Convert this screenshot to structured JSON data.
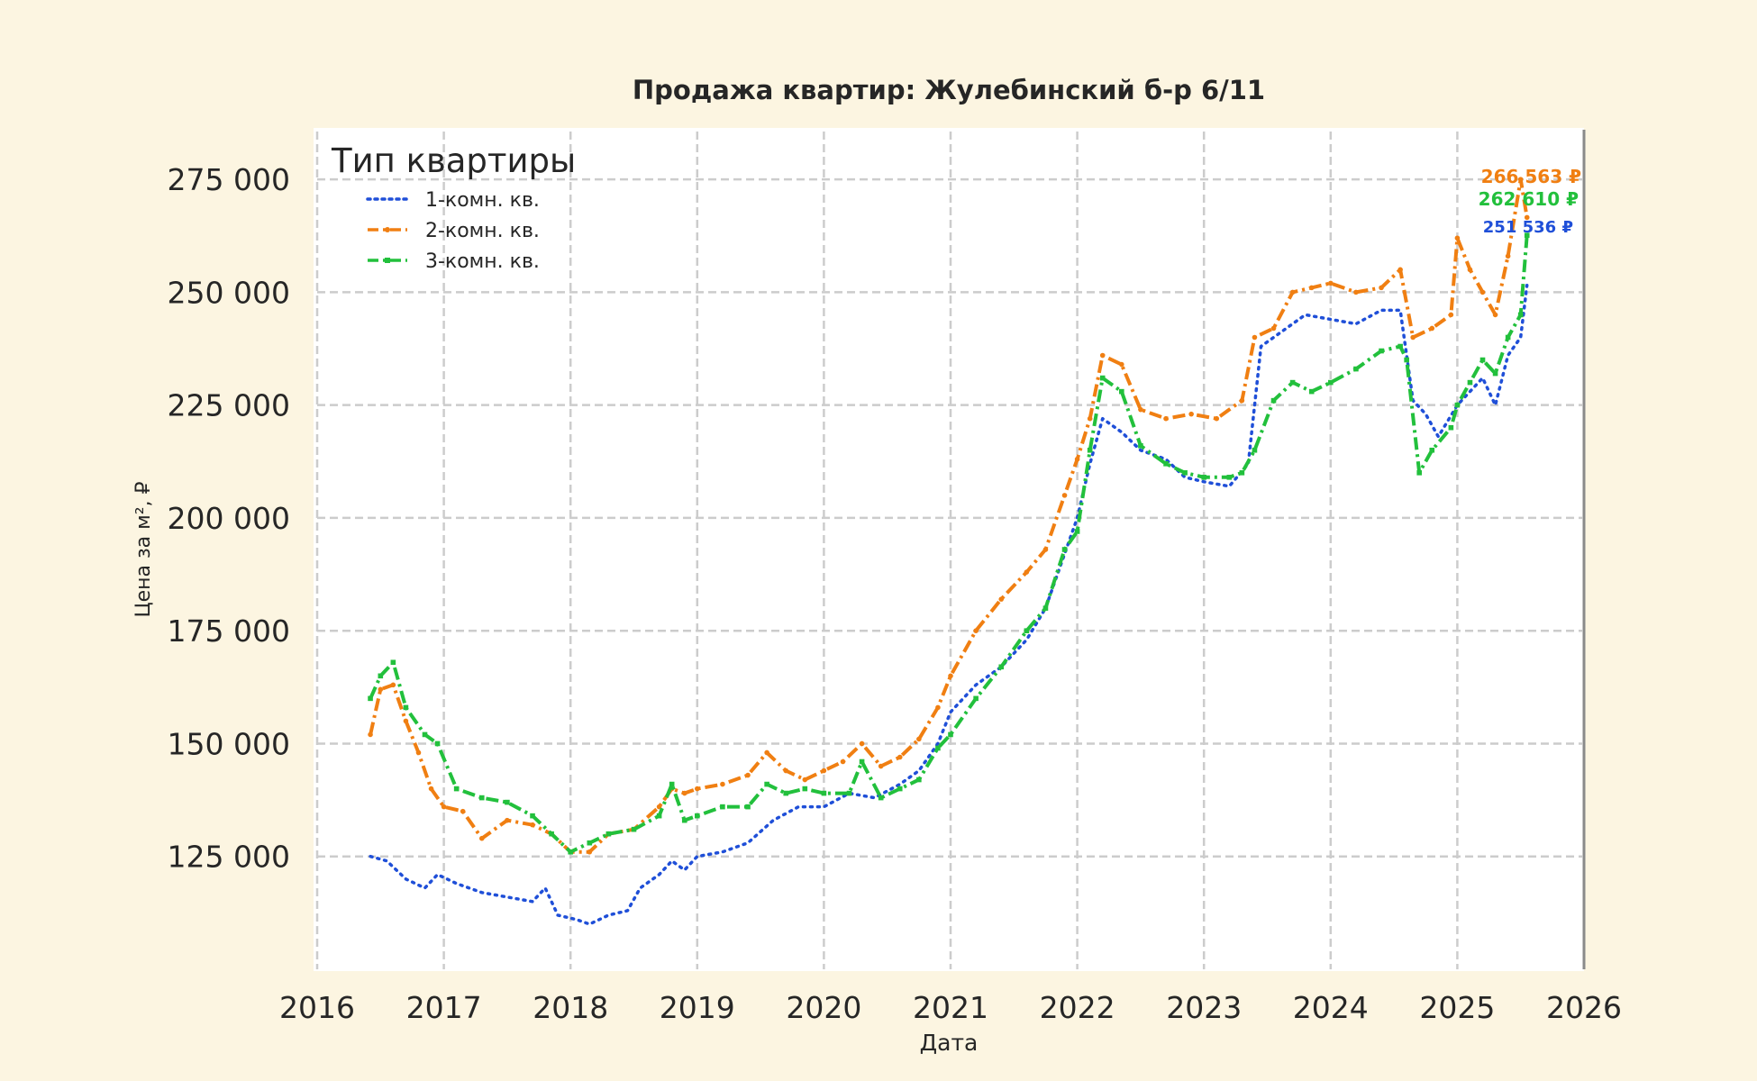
{
  "chart_data": {
    "type": "line",
    "title": "Продажа квартир: Жулебинский б-р 6/11",
    "xlabel": "Дата",
    "ylabel": "Цена за м², ₽",
    "xlim": [
      2016.0,
      2026.0
    ],
    "ylim": [
      100000,
      286000
    ],
    "x_ticks": [
      "2016",
      "2017",
      "2018",
      "2019",
      "2020",
      "2021",
      "2022",
      "2023",
      "2024",
      "2025",
      "2026"
    ],
    "y_ticks": [
      {
        "value": 125000,
        "label": "125 000"
      },
      {
        "value": 150000,
        "label": "150 000"
      },
      {
        "value": 175000,
        "label": "175 000"
      },
      {
        "value": 200000,
        "label": "200 000"
      },
      {
        "value": 225000,
        "label": "225 000"
      },
      {
        "value": 250000,
        "label": "250 000"
      },
      {
        "value": 275000,
        "label": "275 000"
      }
    ],
    "grid": true,
    "legend": {
      "title": "Тип квартиры",
      "placement": "top-left"
    },
    "series": [
      {
        "name": "1-комн. кв.",
        "color": "#1f4fd8",
        "style": "dotted",
        "end_label": "251 536 ₽",
        "x": [
          2016.42,
          2016.55,
          2016.7,
          2016.85,
          2016.95,
          2017.1,
          2017.3,
          2017.5,
          2017.7,
          2017.8,
          2017.9,
          2018.05,
          2018.15,
          2018.3,
          2018.45,
          2018.55,
          2018.7,
          2018.8,
          2018.9,
          2019.0,
          2019.2,
          2019.4,
          2019.6,
          2019.8,
          2020.0,
          2020.2,
          2020.4,
          2020.6,
          2020.75,
          2020.9,
          2021.0,
          2021.2,
          2021.4,
          2021.6,
          2021.75,
          2021.9,
          2022.0,
          2022.1,
          2022.2,
          2022.35,
          2022.5,
          2022.7,
          2022.85,
          2023.0,
          2023.2,
          2023.35,
          2023.45,
          2023.6,
          2023.8,
          2024.0,
          2024.2,
          2024.4,
          2024.55,
          2024.65,
          2024.75,
          2024.85,
          2025.0,
          2025.1,
          2025.2,
          2025.3,
          2025.4,
          2025.5,
          2025.55
        ],
        "values": [
          125000,
          124000,
          120000,
          118000,
          121000,
          119000,
          117000,
          116000,
          115000,
          118000,
          112000,
          111000,
          110000,
          112000,
          113000,
          118000,
          121000,
          124000,
          122000,
          125000,
          126000,
          128000,
          133000,
          136000,
          136000,
          139000,
          138000,
          141000,
          144000,
          150000,
          157000,
          163000,
          167000,
          173000,
          180000,
          192000,
          200000,
          212000,
          222000,
          219000,
          215000,
          213000,
          209000,
          208000,
          207000,
          212000,
          238000,
          241000,
          245000,
          244000,
          243000,
          246000,
          246000,
          226000,
          223000,
          218000,
          225000,
          228000,
          231000,
          225000,
          236000,
          240000,
          251536
        ]
      },
      {
        "name": "2-комн. кв.",
        "color": "#f07f12",
        "style": "dash-dot",
        "end_label": "266 563 ₽",
        "x": [
          2016.42,
          2016.5,
          2016.6,
          2016.7,
          2016.8,
          2016.9,
          2017.0,
          2017.15,
          2017.3,
          2017.5,
          2017.7,
          2017.85,
          2018.0,
          2018.15,
          2018.3,
          2018.5,
          2018.7,
          2018.8,
          2018.9,
          2019.0,
          2019.2,
          2019.4,
          2019.55,
          2019.7,
          2019.85,
          2020.0,
          2020.15,
          2020.3,
          2020.45,
          2020.6,
          2020.75,
          2020.9,
          2021.0,
          2021.2,
          2021.4,
          2021.6,
          2021.75,
          2021.9,
          2022.0,
          2022.1,
          2022.2,
          2022.35,
          2022.5,
          2022.7,
          2022.9,
          2023.1,
          2023.3,
          2023.4,
          2023.55,
          2023.7,
          2023.85,
          2024.0,
          2024.2,
          2024.4,
          2024.55,
          2024.65,
          2024.8,
          2024.95,
          2025.0,
          2025.1,
          2025.2,
          2025.3,
          2025.4,
          2025.5,
          2025.55
        ],
        "values": [
          152000,
          162000,
          163000,
          155000,
          148000,
          140000,
          136000,
          135000,
          129000,
          133000,
          132000,
          130000,
          126000,
          126000,
          130000,
          131000,
          136000,
          140000,
          139000,
          140000,
          141000,
          143000,
          148000,
          144000,
          142000,
          144000,
          146000,
          150000,
          145000,
          147000,
          151000,
          158000,
          165000,
          175000,
          182000,
          188000,
          193000,
          205000,
          213000,
          222000,
          236000,
          234000,
          224000,
          222000,
          223000,
          222000,
          226000,
          240000,
          242000,
          250000,
          251000,
          252000,
          250000,
          251000,
          255000,
          240000,
          242000,
          245000,
          262000,
          255000,
          250000,
          245000,
          258000,
          275000,
          266563
        ]
      },
      {
        "name": "3-комн. кв.",
        "color": "#22c03c",
        "style": "dash-dot",
        "end_label": "262 610 ₽",
        "x": [
          2016.42,
          2016.5,
          2016.6,
          2016.7,
          2016.85,
          2016.95,
          2017.1,
          2017.3,
          2017.5,
          2017.7,
          2017.85,
          2018.0,
          2018.15,
          2018.3,
          2018.5,
          2018.7,
          2018.8,
          2018.9,
          2019.0,
          2019.2,
          2019.4,
          2019.55,
          2019.7,
          2019.85,
          2020.0,
          2020.2,
          2020.3,
          2020.45,
          2020.6,
          2020.75,
          2020.9,
          2021.0,
          2021.2,
          2021.4,
          2021.6,
          2021.75,
          2021.9,
          2022.0,
          2022.1,
          2022.2,
          2022.35,
          2022.5,
          2022.7,
          2022.85,
          2023.0,
          2023.2,
          2023.3,
          2023.4,
          2023.55,
          2023.7,
          2023.85,
          2024.0,
          2024.2,
          2024.4,
          2024.55,
          2024.6,
          2024.7,
          2024.8,
          2024.95,
          2025.0,
          2025.1,
          2025.2,
          2025.3,
          2025.4,
          2025.5,
          2025.55
        ],
        "values": [
          160000,
          165000,
          168000,
          158000,
          152000,
          150000,
          140000,
          138000,
          137000,
          134000,
          130000,
          126000,
          128000,
          130000,
          131000,
          134000,
          141000,
          133000,
          134000,
          136000,
          136000,
          141000,
          139000,
          140000,
          139000,
          139000,
          146000,
          138000,
          140000,
          142000,
          149000,
          152000,
          160000,
          167000,
          175000,
          180000,
          193000,
          197000,
          215000,
          231000,
          228000,
          216000,
          212000,
          210000,
          209000,
          209000,
          210000,
          215000,
          226000,
          230000,
          228000,
          230000,
          233000,
          237000,
          238000,
          235000,
          210000,
          215000,
          220000,
          225000,
          230000,
          235000,
          232000,
          240000,
          245000,
          262610
        ]
      }
    ]
  }
}
